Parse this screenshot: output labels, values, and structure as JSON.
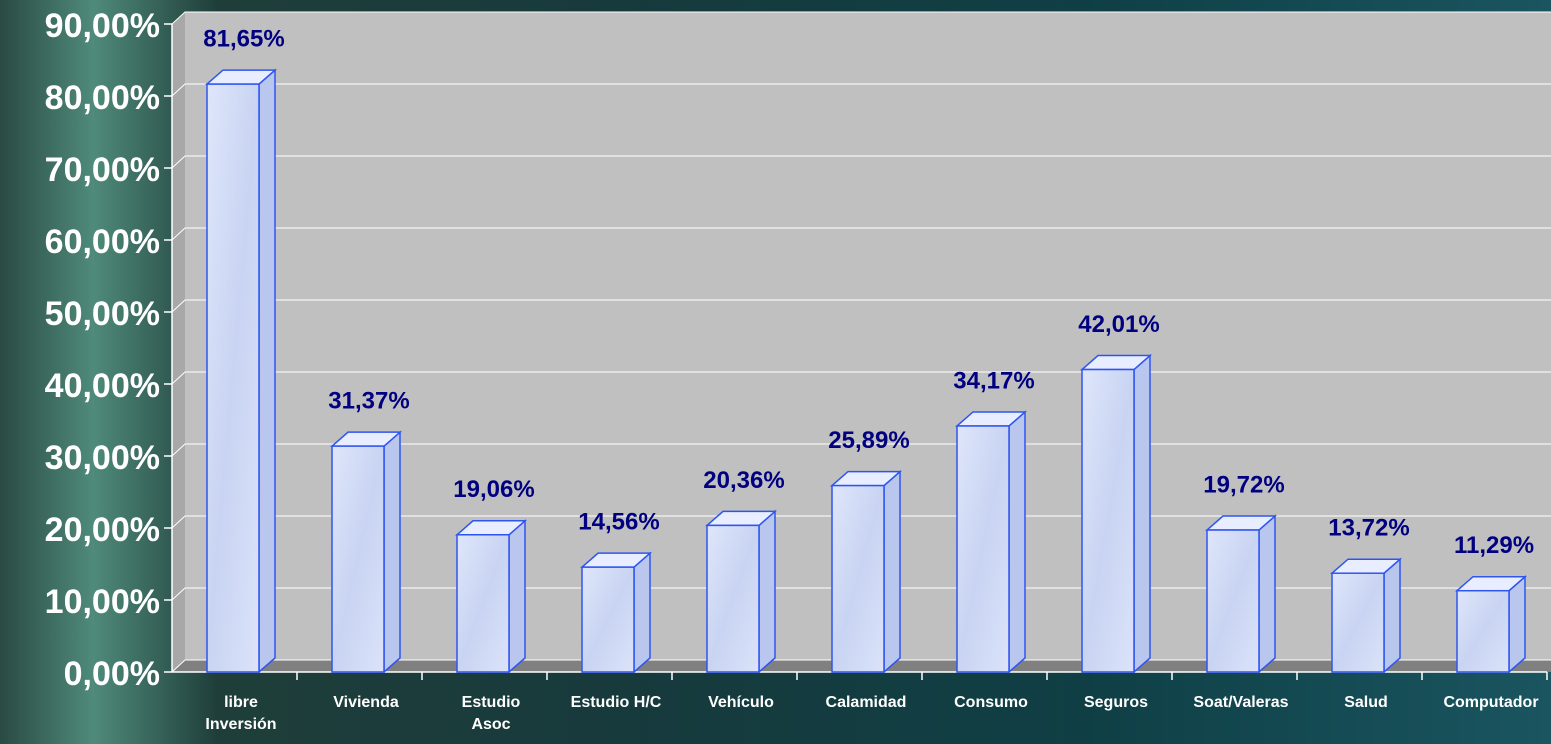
{
  "chart_data": {
    "type": "bar3d",
    "categories": [
      "libre\nInversión",
      "Vivienda",
      "Estudio\nAsoc",
      "Estudio H/C",
      "Vehículo",
      "Calamidad",
      "Consumo",
      "Seguros",
      "Soat/Valeras",
      "Salud",
      "Computador"
    ],
    "values": [
      81.65,
      31.37,
      19.06,
      14.56,
      20.36,
      25.89,
      34.17,
      42.01,
      19.72,
      13.72,
      11.29
    ],
    "value_labels": [
      "81,65%",
      "31,37%",
      "19,06%",
      "14,56%",
      "20,36%",
      "25,89%",
      "34,17%",
      "42,01%",
      "19,72%",
      "13,72%",
      "11,29%"
    ],
    "color": "#d4def6",
    "ylim": [
      0,
      90
    ],
    "yticks": [
      {
        "value": 0,
        "label": "0,00%"
      },
      {
        "value": 10,
        "label": "10,00%"
      },
      {
        "value": 20,
        "label": "20,00%"
      },
      {
        "value": 30,
        "label": "30,00%"
      },
      {
        "value": 40,
        "label": "40,00%"
      },
      {
        "value": 50,
        "label": "50,00%"
      },
      {
        "value": 60,
        "label": "60,00%"
      },
      {
        "value": 70,
        "label": "70,00%"
      },
      {
        "value": 80,
        "label": "80,00%"
      },
      {
        "value": 90,
        "label": "90,00%"
      }
    ],
    "grid": true
  }
}
